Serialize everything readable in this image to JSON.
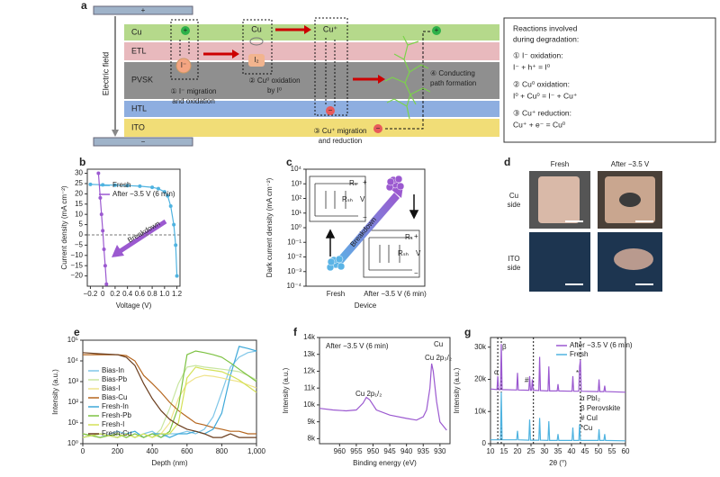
{
  "panel_labels": [
    "a",
    "b",
    "c",
    "d",
    "e",
    "f",
    "g"
  ],
  "diagram": {
    "electrodes": [
      "+",
      "−"
    ],
    "field_label": "Electric field",
    "layers": [
      "Cu",
      "ETL",
      "PVSK",
      "HTL",
      "ITO"
    ],
    "species": [
      "+",
      "I⁻",
      "Cu",
      "I₂",
      "Cu⁺",
      "−",
      "−",
      "+"
    ],
    "captions": [
      [
        "① I⁻ migration",
        "and oxidation"
      ],
      [
        "② Cu⁰ oxidation",
        "by I⁰"
      ],
      [
        "③ Cu⁺ migration",
        "and reduction"
      ],
      [
        "④ Conducting",
        "path formation"
      ]
    ],
    "reactions": [
      "Reactions involved",
      "during degradation:",
      "① I⁻ oxidation:",
      "I⁻ + h⁺ = I⁰",
      "② Cu⁰ oxidation:",
      "I⁰ + Cu⁰ = I⁻ + Cu⁺",
      "③ Cu⁺ reduction:",
      "Cu⁺ + e⁻ = Cu⁰"
    ]
  },
  "photos": {
    "columns": [
      "Fresh",
      "After −3.5 V"
    ],
    "rows": [
      [
        "Cu",
        "side"
      ],
      [
        "ITO",
        "side"
      ]
    ]
  },
  "chart_data": [
    {
      "type": "line",
      "markers": true,
      "x_label": "Voltage (V)",
      "y_label": "Current density (mA cm⁻²)",
      "xlim": [
        -0.25,
        1.25
      ],
      "xticks": [
        {
          "value": -0.2,
          "label": "−0.2"
        },
        0,
        0.2,
        0.4,
        0.6,
        0.8,
        {
          "value": 1,
          "label": "1.0"
        },
        1.2
      ],
      "ylim": [
        -25,
        32
      ],
      "yticks": [
        {
          "value": -20,
          "label": "−20"
        },
        {
          "value": -15,
          "label": "−15"
        },
        {
          "value": -10,
          "label": "−10"
        },
        {
          "value": -5,
          "label": "−5"
        },
        0,
        5,
        10,
        15,
        20,
        25,
        30
      ],
      "zero_line": 0,
      "series": [
        {
          "name": "Fresh",
          "color": "#4fb3e0",
          "x": [
            -0.2,
            0,
            0.2,
            0.4,
            0.6,
            0.8,
            0.9,
            1.0,
            1.05,
            1.1,
            1.15,
            1.18,
            1.2
          ],
          "values": [
            24.6,
            24.4,
            24.2,
            24,
            23.7,
            23.2,
            22.5,
            21,
            19,
            14,
            5,
            -5,
            -20
          ]
        },
        {
          "name": "After −3.5 V (6 min)",
          "color": "#9b59d0",
          "x": [
            -0.07,
            -0.04,
            -0.02,
            0,
            0.02,
            0.04,
            0.06
          ],
          "values": [
            30,
            18,
            10,
            2,
            -7,
            -15,
            -24
          ]
        }
      ],
      "annotations": [
        "Breakdown"
      ]
    },
    {
      "type": "scatter",
      "log_y": true,
      "x_label": "Device",
      "y_label": "Dark current density (mA cm⁻²)",
      "categories": [
        "Fresh",
        "After −3.5 V (6 min)"
      ],
      "values": [
        0.003,
        900
      ],
      "colors": [
        "#5ab4e6",
        "#9b59d0"
      ],
      "ylim": [
        0.0001,
        10000
      ],
      "yticks": [
        {
          "value": 0.0001,
          "label": "10⁻⁴"
        },
        {
          "value": 0.001,
          "label": "10⁻³"
        },
        {
          "value": 0.01,
          "label": "10⁻²"
        },
        {
          "value": 0.1,
          "label": "10⁻¹"
        },
        {
          "value": 1,
          "label": "10⁰"
        },
        {
          "value": 10,
          "label": "10¹"
        },
        {
          "value": 100,
          "label": "10²"
        },
        {
          "value": 1000,
          "label": "10³"
        },
        {
          "value": 10000,
          "label": "10⁴"
        }
      ],
      "annotations": [
        "Breakdown",
        "Rₛ",
        "Rₛₕ",
        "V",
        "+",
        "−",
        "Rₛ",
        "Rₛₕ",
        "V",
        "+",
        "−"
      ]
    },
    {
      "type": "line",
      "log_y": true,
      "x_label": "Depth (nm)",
      "y_label": "Intensity (a.u.)",
      "xlim": [
        0,
        1000
      ],
      "xticks": [
        0,
        200,
        400,
        600,
        800,
        {
          "value": 1000,
          "label": "1,000"
        }
      ],
      "ylim": [
        1,
        100000
      ],
      "yticks": [
        {
          "value": 1,
          "label": "10⁰"
        },
        {
          "value": 10,
          "label": "10¹"
        },
        {
          "value": 100,
          "label": "10²"
        },
        {
          "value": 1000,
          "label": "10³"
        },
        {
          "value": 10000,
          "label": "10⁴"
        },
        {
          "value": 100000,
          "label": "10⁵"
        }
      ],
      "x": [
        0,
        100,
        200,
        250,
        300,
        350,
        400,
        450,
        500,
        550,
        600,
        650,
        700,
        750,
        800,
        850,
        900,
        950,
        1000
      ],
      "series": [
        {
          "name": "Bias-In",
          "color": "#7fc6e8",
          "values": [
            3,
            2,
            4,
            3,
            2,
            3,
            4,
            2,
            3,
            3,
            4,
            3,
            5,
            20,
            300,
            5000,
            15000,
            25000,
            30000
          ]
        },
        {
          "name": "Bias-Pb",
          "color": "#c8e6a0",
          "values": [
            2,
            3,
            2,
            3,
            2,
            3,
            2,
            5,
            50,
            800,
            5000,
            6000,
            5000,
            4500,
            4000,
            3500,
            3000,
            2000,
            1200
          ]
        },
        {
          "name": "Bias-I",
          "color": "#efe38a",
          "values": [
            3,
            2,
            3,
            2,
            3,
            2,
            3,
            3,
            10,
            150,
            800,
            1500,
            2000,
            1800,
            1500,
            1200,
            1000,
            700,
            500
          ]
        },
        {
          "name": "Bias-Cu",
          "color": "#b5651d",
          "values": [
            20000,
            20000,
            20000,
            18000,
            10000,
            2000,
            800,
            300,
            100,
            40,
            20,
            10,
            8,
            6,
            5,
            4,
            4,
            3,
            3
          ]
        },
        {
          "name": "Fresh-In",
          "color": "#3fa9d9",
          "values": [
            2,
            3,
            2,
            3,
            4,
            2,
            3,
            3,
            2,
            3,
            3,
            4,
            3,
            5,
            30,
            2000,
            50000,
            40000,
            30000
          ]
        },
        {
          "name": "Fresh-Pb",
          "color": "#7dc242",
          "values": [
            3,
            2,
            3,
            2,
            3,
            2,
            3,
            2,
            4,
            60,
            20000,
            30000,
            25000,
            20000,
            15000,
            8000,
            4000,
            2000,
            1000
          ]
        },
        {
          "name": "Fresh-I",
          "color": "#d4e157",
          "values": [
            2,
            3,
            2,
            3,
            2,
            3,
            2,
            3,
            3,
            10,
            1500,
            5000,
            4000,
            3500,
            3000,
            2000,
            1200,
            600,
            300
          ]
        },
        {
          "name": "Fresh-Cu",
          "color": "#6b3e1e",
          "values": [
            25000,
            22000,
            20000,
            15000,
            6000,
            800,
            150,
            40,
            15,
            8,
            5,
            4,
            3,
            2,
            2,
            3,
            2,
            2,
            2
          ]
        }
      ]
    },
    {
      "type": "line",
      "x_label": "Binding energy (eV)",
      "y_label": "Intensity (a.u.)",
      "xlim": [
        966,
        927
      ],
      "xticks": [
        960,
        955,
        950,
        945,
        940,
        935,
        930
      ],
      "ylim": [
        7700,
        14000
      ],
      "yticks": [
        {
          "value": 8000,
          "label": "8k"
        },
        {
          "value": 9000,
          "label": "9k"
        },
        {
          "value": 10000,
          "label": "10k"
        },
        {
          "value": 11000,
          "label": "11k"
        },
        {
          "value": 12000,
          "label": "12k"
        },
        {
          "value": 13000,
          "label": "13k"
        },
        {
          "value": 14000,
          "label": "14k"
        }
      ],
      "series": [
        {
          "color": "#9b59d0",
          "x": [
            966,
            962,
            958,
            955,
            953,
            952,
            951,
            949,
            945,
            940,
            937,
            935,
            934,
            933,
            932.5,
            932,
            931,
            930,
            928
          ],
          "values": [
            9800,
            9700,
            9650,
            9700,
            10100,
            10450,
            10300,
            9700,
            9400,
            9200,
            9100,
            9300,
            9700,
            11000,
            12450,
            12000,
            10200,
            9000,
            8500
          ]
        }
      ],
      "annotations": [
        "After −3.5 V (6 min)",
        "Cu",
        "Cu 2p₃/₂",
        "Cu 2p₁/₂"
      ]
    },
    {
      "type": "line",
      "x_label": "2θ (°)",
      "y_label": "Intensity (a.u.)",
      "xlim": [
        10,
        60
      ],
      "xticks": [
        10,
        15,
        20,
        25,
        30,
        35,
        40,
        45,
        50,
        55,
        60
      ],
      "ylim": [
        0,
        33000
      ],
      "yticks": [
        0,
        {
          "value": 10000,
          "label": "10k"
        },
        {
          "value": 20000,
          "label": "20k"
        },
        {
          "value": 30000,
          "label": "30k"
        }
      ],
      "reference_lines": [
        12.7,
        14.0,
        25.9,
        43.3
      ],
      "series": [
        {
          "name": "After −3.5 V (6 min)",
          "color": "#9b59d0",
          "x": [
            10,
            12.4,
            12.7,
            13.0,
            13.7,
            14.0,
            14.3,
            19.7,
            20.0,
            20.3,
            24.2,
            24.5,
            24.8,
            25.2,
            25.5,
            25.8,
            27.9,
            28.2,
            28.5,
            31.3,
            31.6,
            31.9,
            34.7,
            35.0,
            35.3,
            40.2,
            40.5,
            40.8,
            42.7,
            43.0,
            43.3,
            43.6,
            49.9,
            50.2,
            50.5,
            52.0,
            52.3,
            52.6,
            60
          ],
          "values": [
            17000,
            16800,
            21000,
            16800,
            16800,
            31000,
            16800,
            16700,
            22000,
            16700,
            16600,
            21000,
            16600,
            16600,
            20000,
            16600,
            16500,
            27000,
            16500,
            16400,
            24000,
            16400,
            16400,
            18500,
            16400,
            16300,
            21000,
            16300,
            16300,
            24000,
            26000,
            16300,
            16200,
            20000,
            16200,
            16200,
            18000,
            16200,
            16000
          ]
        },
        {
          "name": "Fresh",
          "color": "#4fb3e0",
          "x": [
            10,
            13.7,
            14.0,
            14.3,
            19.7,
            20.0,
            20.3,
            24.2,
            24.5,
            24.8,
            27.9,
            28.2,
            28.5,
            31.3,
            31.6,
            31.9,
            34.7,
            35.0,
            35.3,
            40.2,
            40.5,
            40.8,
            42.7,
            43.0,
            43.3,
            49.9,
            50.2,
            50.5,
            52.0,
            52.3,
            52.6,
            60
          ],
          "values": [
            1200,
            1200,
            16000,
            1200,
            1200,
            4000,
            1200,
            1100,
            7500,
            1100,
            1100,
            8000,
            1100,
            1000,
            7000,
            1000,
            1000,
            3000,
            1000,
            1000,
            5000,
            1000,
            1000,
            6000,
            1000,
            1000,
            4500,
            1000,
            1000,
            3000,
            1000,
            900
          ]
        }
      ],
      "annotations": [
        "α",
        "β",
        "#",
        "*",
        "α PbI₂",
        "β Perovskite",
        "# CuI",
        "*Cu"
      ]
    }
  ]
}
